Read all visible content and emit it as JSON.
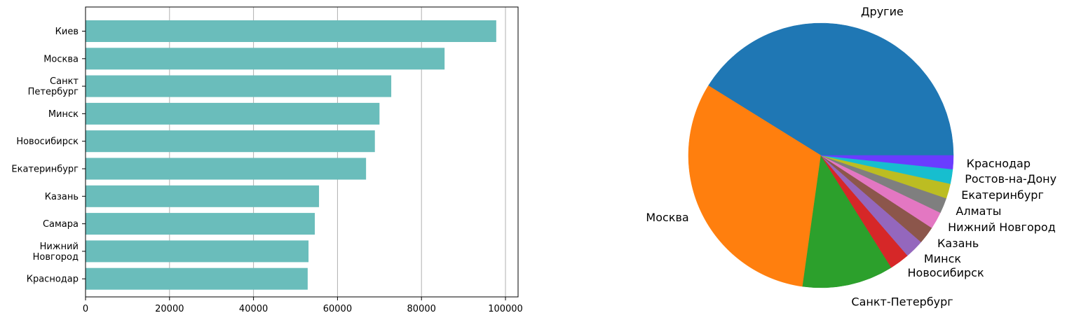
{
  "chart_data": [
    {
      "type": "bar",
      "orientation": "horizontal",
      "categories": [
        "Киев",
        "Москва",
        "Санкт\nПетербург",
        "Минск",
        "Новосибирск",
        "Екатеринбург",
        "Казань",
        "Самара",
        "Нижний\nНовгород",
        "Краснодар"
      ],
      "values": [
        97800,
        85500,
        72800,
        70000,
        68900,
        66800,
        55600,
        54600,
        53100,
        52900
      ],
      "xlim": [
        0,
        103000
      ],
      "xticks": [
        0,
        20000,
        40000,
        60000,
        80000,
        100000
      ],
      "xtick_labels": [
        "0",
        "20000",
        "40000",
        "60000",
        "80000",
        "100000"
      ],
      "grid": "x",
      "bar_color": "#6abdbb"
    },
    {
      "type": "pie",
      "labels": [
        "Другие",
        "Москва",
        "Санкт-Петербург",
        "Новосибирск",
        "Минск",
        "Казань",
        "Нижний Новгород",
        "Алматы",
        "Екатеринбург",
        "Ростов-на-Дону",
        "Краснодар"
      ],
      "values": [
        0.4,
        0.3075,
        0.1081,
        0.0236,
        0.0224,
        0.0208,
        0.0204,
        0.0182,
        0.0176,
        0.0173,
        0.0161
      ],
      "colors": [
        "#1f77b4",
        "#ff7f0e",
        "#2ca02c",
        "#d62728",
        "#9467bd",
        "#8c564b",
        "#e377c2",
        "#7f7f7f",
        "#bcbd22",
        "#17becf",
        "#6a3cff"
      ],
      "start_angle_deg": 0,
      "direction": "counterclockwise"
    }
  ]
}
